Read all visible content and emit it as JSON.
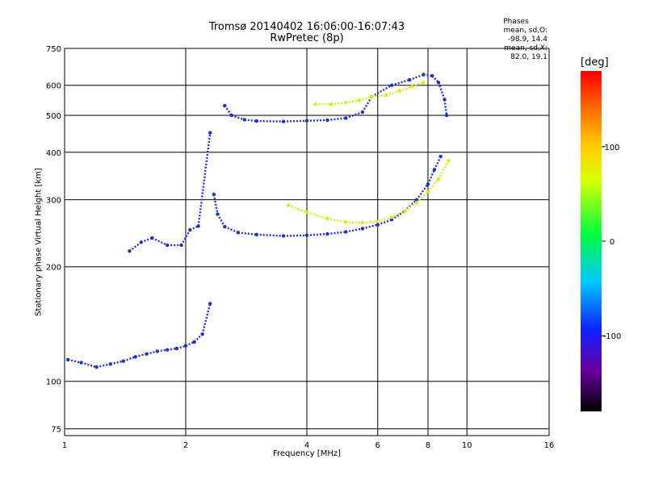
{
  "chart_data": {
    "type": "scatter",
    "title_line1": "Tromsø 20140402 16:06:00-16:07:43",
    "title_line2": "RwPretec (8p)",
    "phase_stats": {
      "header": "Phases",
      "line1": "mean, sd,O: -98.9, 14.4",
      "line2": "mean, sd,X:  82.0, 19.1"
    },
    "xlabel": "Frequency [MHz]",
    "ylabel": "Stationary phase Virtual Height [km]",
    "x_scale": "log",
    "y_scale": "log",
    "xlim": [
      1,
      16
    ],
    "ylim": [
      72,
      750
    ],
    "x_ticks": [
      1,
      2,
      4,
      6,
      8,
      10,
      16
    ],
    "x_tick_labels": [
      "1",
      "2",
      "4",
      "6",
      "8",
      "10",
      "16"
    ],
    "y_ticks": [
      75,
      100,
      200,
      300,
      400,
      500,
      600,
      750
    ],
    "y_tick_labels": [
      "75",
      "100",
      "200",
      "300",
      "400",
      "500",
      "600",
      "750"
    ],
    "grid": true,
    "colorbar": {
      "unit": "[deg]",
      "range": [
        -180,
        180
      ],
      "ticks": [
        100,
        0,
        -100
      ],
      "tick_labels": [
        "100",
        "0",
        "-100"
      ]
    },
    "series": [
      {
        "trace": "O-mode low layer",
        "phase_deg": -100,
        "x": [
          1.02,
          1.1,
          1.2,
          1.3,
          1.4,
          1.5,
          1.6,
          1.7,
          1.8,
          1.9,
          2.0,
          2.1,
          2.2,
          2.3
        ],
        "y": [
          114,
          112,
          109,
          111,
          113,
          116,
          118,
          120,
          121,
          122,
          124,
          127,
          133,
          160
        ]
      },
      {
        "trace": "O-mode E/F1 rise",
        "phase_deg": -100,
        "x": [
          1.45,
          1.55,
          1.65,
          1.8,
          1.95,
          2.05,
          2.15,
          2.3
        ],
        "y": [
          220,
          232,
          238,
          228,
          228,
          250,
          256,
          450
        ]
      },
      {
        "trace": "O-mode F2 lower",
        "phase_deg": -100,
        "x": [
          2.35,
          2.4,
          2.5,
          2.7,
          3.0,
          3.5,
          4.0,
          4.5,
          5.0,
          5.5,
          6.0,
          6.5,
          7.0,
          7.5,
          8.0,
          8.3,
          8.6
        ],
        "y": [
          310,
          275,
          255,
          246,
          243,
          241,
          242,
          244,
          247,
          252,
          258,
          266,
          280,
          300,
          330,
          360,
          390
        ]
      },
      {
        "trace": "O-mode F upper",
        "phase_deg": -100,
        "x": [
          2.5,
          2.6,
          2.8,
          3.0,
          3.5,
          4.0,
          4.5,
          5.0,
          5.5,
          5.8,
          6.5,
          7.2,
          7.8,
          8.2,
          8.5,
          8.8,
          8.9
        ],
        "y": [
          530,
          500,
          487,
          483,
          482,
          484,
          486,
          492,
          510,
          560,
          600,
          620,
          640,
          635,
          610,
          550,
          500
        ]
      },
      {
        "trace": "X-mode F2",
        "phase_deg": 82,
        "x": [
          3.6,
          4.0,
          4.5,
          5.0,
          5.5,
          6.0,
          6.5,
          7.0,
          7.5,
          8.0,
          8.5,
          9.0
        ],
        "y": [
          290,
          278,
          268,
          262,
          261,
          263,
          270,
          280,
          295,
          315,
          340,
          380
        ]
      },
      {
        "trace": "X-mode F upper",
        "phase_deg": 82,
        "x": [
          4.2,
          4.6,
          5.0,
          5.4,
          5.8,
          6.3,
          6.8,
          7.3,
          7.8
        ],
        "y": [
          535,
          535,
          540,
          548,
          560,
          565,
          580,
          595,
          610
        ]
      }
    ]
  }
}
